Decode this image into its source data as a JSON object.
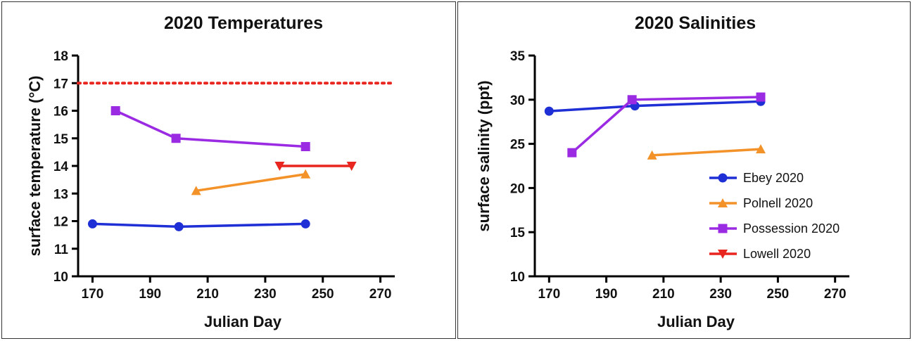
{
  "chart_data": [
    {
      "type": "line",
      "title": "2020 Temperatures",
      "xlabel": "Julian Day",
      "ylabel": "surface temperature (°C)",
      "xlim": [
        165,
        275
      ],
      "ylim": [
        10,
        18
      ],
      "xticks": [
        170,
        190,
        210,
        230,
        250,
        270
      ],
      "yticks": [
        10,
        11,
        12,
        13,
        14,
        15,
        16,
        17,
        18
      ],
      "reference_line": {
        "y": 17,
        "color": "#e8251e",
        "style": "dotted"
      },
      "series": [
        {
          "name": "Ebey 2020",
          "color": "#1f2fd6",
          "marker": "circle",
          "x": [
            170,
            200,
            244
          ],
          "y": [
            11.9,
            11.8,
            11.9
          ]
        },
        {
          "name": "Polnell 2020",
          "color": "#f4922a",
          "marker": "triangle-up",
          "x": [
            206,
            244
          ],
          "y": [
            13.1,
            13.7
          ]
        },
        {
          "name": "Possession 2020",
          "color": "#9b2be3",
          "marker": "square",
          "x": [
            178,
            199,
            244
          ],
          "y": [
            16.0,
            15.0,
            14.7
          ]
        },
        {
          "name": "Lowell 2020",
          "color": "#e8251e",
          "marker": "triangle-down",
          "x": [
            235,
            260
          ],
          "y": [
            14.0,
            14.0
          ]
        }
      ]
    },
    {
      "type": "line",
      "title": "2020 Salinities",
      "xlabel": "Julian Day",
      "ylabel": "surface salinity (ppt)",
      "xlim": [
        165,
        275
      ],
      "ylim": [
        10,
        35
      ],
      "xticks": [
        170,
        190,
        210,
        230,
        250,
        270
      ],
      "yticks": [
        10,
        15,
        20,
        25,
        30,
        35
      ],
      "legend": "right",
      "series": [
        {
          "name": "Ebey 2020",
          "color": "#1f2fd6",
          "marker": "circle",
          "x": [
            170,
            200,
            244
          ],
          "y": [
            28.7,
            29.3,
            29.8
          ]
        },
        {
          "name": "Polnell 2020",
          "color": "#f4922a",
          "marker": "triangle-up",
          "x": [
            206,
            244
          ],
          "y": [
            23.7,
            24.4
          ]
        },
        {
          "name": "Possession 2020",
          "color": "#9b2be3",
          "marker": "square",
          "x": [
            178,
            199,
            244
          ],
          "y": [
            24.0,
            30.0,
            30.3
          ]
        },
        {
          "name": "Lowell 2020",
          "color": "#e8251e",
          "marker": "triangle-down",
          "x": [],
          "y": []
        }
      ]
    }
  ]
}
